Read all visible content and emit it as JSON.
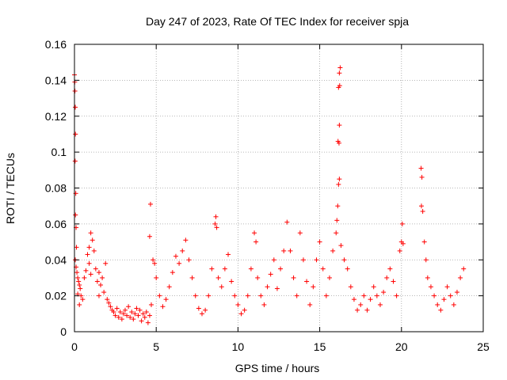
{
  "chart_data": {
    "type": "scatter",
    "title": "Day 247 of 2023, Rate Of TEC Index for receiver spja",
    "xlabel": "GPS time / hours",
    "ylabel": "ROTI / TECUs",
    "xlim": [
      0,
      25
    ],
    "ylim": [
      0,
      0.16
    ],
    "grid": true,
    "marker": "+",
    "x_ticks": [
      {
        "value": 0,
        "label": "0"
      },
      {
        "value": 5,
        "label": "5"
      },
      {
        "value": 10,
        "label": "10"
      },
      {
        "value": 15,
        "label": "15"
      },
      {
        "value": 20,
        "label": "20"
      },
      {
        "value": 25,
        "label": "25"
      }
    ],
    "y_ticks": [
      {
        "value": 0,
        "label": "0"
      },
      {
        "value": 0.02,
        "label": "0.02"
      },
      {
        "value": 0.04,
        "label": "0.04"
      },
      {
        "value": 0.06,
        "label": "0.06"
      },
      {
        "value": 0.08,
        "label": "0.08"
      },
      {
        "value": 0.1,
        "label": "0.1"
      },
      {
        "value": 0.12,
        "label": "0.12"
      },
      {
        "value": 0.14,
        "label": "0.14"
      },
      {
        "value": 0.16,
        "label": "0.16"
      }
    ],
    "colors": {
      "series": "#ff0000",
      "grid": "#a0a0a0",
      "axis": "#000000"
    },
    "series": [
      {
        "name": "ROTI",
        "points": [
          [
            0.0,
            0.143
          ],
          [
            0.02,
            0.139
          ],
          [
            0.03,
            0.134
          ],
          [
            0.05,
            0.125
          ],
          [
            0.06,
            0.11
          ],
          [
            0.04,
            0.095
          ],
          [
            0.08,
            0.077
          ],
          [
            0.06,
            0.065
          ],
          [
            0.1,
            0.058
          ],
          [
            0.12,
            0.047
          ],
          [
            0.05,
            0.04
          ],
          [
            0.1,
            0.036
          ],
          [
            0.15,
            0.033
          ],
          [
            0.2,
            0.03
          ],
          [
            0.25,
            0.028
          ],
          [
            0.3,
            0.026
          ],
          [
            0.35,
            0.024
          ],
          [
            0.2,
            0.021
          ],
          [
            0.4,
            0.02
          ],
          [
            0.5,
            0.018
          ],
          [
            0.3,
            0.015
          ],
          [
            0.6,
            0.03
          ],
          [
            0.7,
            0.034
          ],
          [
            0.8,
            0.043
          ],
          [
            0.9,
            0.047
          ],
          [
            1.0,
            0.055
          ],
          [
            1.1,
            0.051
          ],
          [
            1.2,
            0.045
          ],
          [
            0.9,
            0.038
          ],
          [
            1.0,
            0.032
          ],
          [
            1.3,
            0.035
          ],
          [
            1.4,
            0.028
          ],
          [
            1.5,
            0.033
          ],
          [
            1.6,
            0.026
          ],
          [
            1.7,
            0.03
          ],
          [
            1.8,
            0.022
          ],
          [
            1.5,
            0.02
          ],
          [
            1.9,
            0.038
          ],
          [
            2.0,
            0.018
          ],
          [
            2.1,
            0.016
          ],
          [
            2.2,
            0.014
          ],
          [
            2.3,
            0.012
          ],
          [
            2.4,
            0.011
          ],
          [
            2.5,
            0.009
          ],
          [
            2.6,
            0.013
          ],
          [
            2.7,
            0.008
          ],
          [
            2.8,
            0.011
          ],
          [
            2.9,
            0.007
          ],
          [
            3.0,
            0.01
          ],
          [
            3.1,
            0.012
          ],
          [
            3.2,
            0.009
          ],
          [
            3.3,
            0.014
          ],
          [
            3.4,
            0.008
          ],
          [
            3.5,
            0.011
          ],
          [
            3.6,
            0.007
          ],
          [
            3.7,
            0.01
          ],
          [
            3.8,
            0.013
          ],
          [
            3.9,
            0.009
          ],
          [
            4.0,
            0.012
          ],
          [
            4.1,
            0.006
          ],
          [
            4.2,
            0.01
          ],
          [
            4.3,
            0.008
          ],
          [
            4.4,
            0.011
          ],
          [
            4.5,
            0.005
          ],
          [
            4.6,
            0.009
          ],
          [
            4.7,
            0.015
          ],
          [
            4.8,
            0.04
          ],
          [
            4.9,
            0.038
          ],
          [
            4.6,
            0.053
          ],
          [
            4.65,
            0.071
          ],
          [
            5.0,
            0.03
          ],
          [
            5.2,
            0.02
          ],
          [
            5.4,
            0.014
          ],
          [
            5.6,
            0.018
          ],
          [
            5.8,
            0.025
          ],
          [
            6.0,
            0.033
          ],
          [
            6.2,
            0.042
          ],
          [
            6.4,
            0.038
          ],
          [
            6.6,
            0.045
          ],
          [
            6.8,
            0.051
          ],
          [
            7.0,
            0.04
          ],
          [
            7.2,
            0.03
          ],
          [
            7.4,
            0.02
          ],
          [
            7.6,
            0.013
          ],
          [
            7.8,
            0.01
          ],
          [
            8.0,
            0.012
          ],
          [
            8.2,
            0.02
          ],
          [
            8.4,
            0.035
          ],
          [
            8.6,
            0.06
          ],
          [
            8.65,
            0.064
          ],
          [
            8.7,
            0.058
          ],
          [
            8.8,
            0.03
          ],
          [
            9.0,
            0.025
          ],
          [
            9.2,
            0.035
          ],
          [
            9.4,
            0.043
          ],
          [
            9.6,
            0.028
          ],
          [
            9.8,
            0.02
          ],
          [
            10.0,
            0.015
          ],
          [
            10.2,
            0.01
          ],
          [
            10.4,
            0.012
          ],
          [
            10.6,
            0.02
          ],
          [
            10.8,
            0.035
          ],
          [
            11.0,
            0.055
          ],
          [
            11.1,
            0.05
          ],
          [
            11.2,
            0.03
          ],
          [
            11.4,
            0.02
          ],
          [
            11.6,
            0.015
          ],
          [
            11.8,
            0.025
          ],
          [
            12.0,
            0.032
          ],
          [
            12.2,
            0.04
          ],
          [
            12.4,
            0.024
          ],
          [
            12.6,
            0.035
          ],
          [
            12.8,
            0.045
          ],
          [
            13.0,
            0.061
          ],
          [
            13.2,
            0.045
          ],
          [
            13.4,
            0.03
          ],
          [
            13.6,
            0.02
          ],
          [
            13.8,
            0.055
          ],
          [
            14.0,
            0.04
          ],
          [
            14.2,
            0.028
          ],
          [
            14.4,
            0.015
          ],
          [
            14.6,
            0.025
          ],
          [
            14.8,
            0.04
          ],
          [
            15.0,
            0.05
          ],
          [
            15.2,
            0.035
          ],
          [
            15.4,
            0.02
          ],
          [
            15.6,
            0.03
          ],
          [
            15.8,
            0.045
          ],
          [
            16.0,
            0.055
          ],
          [
            16.05,
            0.062
          ],
          [
            16.1,
            0.07
          ],
          [
            16.15,
            0.082
          ],
          [
            16.2,
            0.085
          ],
          [
            16.12,
            0.106
          ],
          [
            16.18,
            0.105
          ],
          [
            16.2,
            0.115
          ],
          [
            16.15,
            0.136
          ],
          [
            16.22,
            0.137
          ],
          [
            16.2,
            0.144
          ],
          [
            16.25,
            0.147
          ],
          [
            16.3,
            0.048
          ],
          [
            16.5,
            0.04
          ],
          [
            16.7,
            0.035
          ],
          [
            16.9,
            0.025
          ],
          [
            17.1,
            0.018
          ],
          [
            17.3,
            0.012
          ],
          [
            17.5,
            0.015
          ],
          [
            17.7,
            0.02
          ],
          [
            17.9,
            0.012
          ],
          [
            18.1,
            0.018
          ],
          [
            18.3,
            0.025
          ],
          [
            18.5,
            0.02
          ],
          [
            18.7,
            0.015
          ],
          [
            18.9,
            0.022
          ],
          [
            19.1,
            0.03
          ],
          [
            19.3,
            0.035
          ],
          [
            19.5,
            0.028
          ],
          [
            19.7,
            0.02
          ],
          [
            19.9,
            0.045
          ],
          [
            20.0,
            0.05
          ],
          [
            20.05,
            0.06
          ],
          [
            20.1,
            0.049
          ],
          [
            21.2,
            0.091
          ],
          [
            21.25,
            0.086
          ],
          [
            21.22,
            0.07
          ],
          [
            21.3,
            0.067
          ],
          [
            21.4,
            0.05
          ],
          [
            21.5,
            0.04
          ],
          [
            21.6,
            0.03
          ],
          [
            21.8,
            0.025
          ],
          [
            22.0,
            0.02
          ],
          [
            22.2,
            0.015
          ],
          [
            22.4,
            0.012
          ],
          [
            22.6,
            0.018
          ],
          [
            22.8,
            0.025
          ],
          [
            23.0,
            0.02
          ],
          [
            23.2,
            0.015
          ],
          [
            23.4,
            0.022
          ],
          [
            23.6,
            0.03
          ],
          [
            23.8,
            0.035
          ]
        ]
      }
    ]
  }
}
